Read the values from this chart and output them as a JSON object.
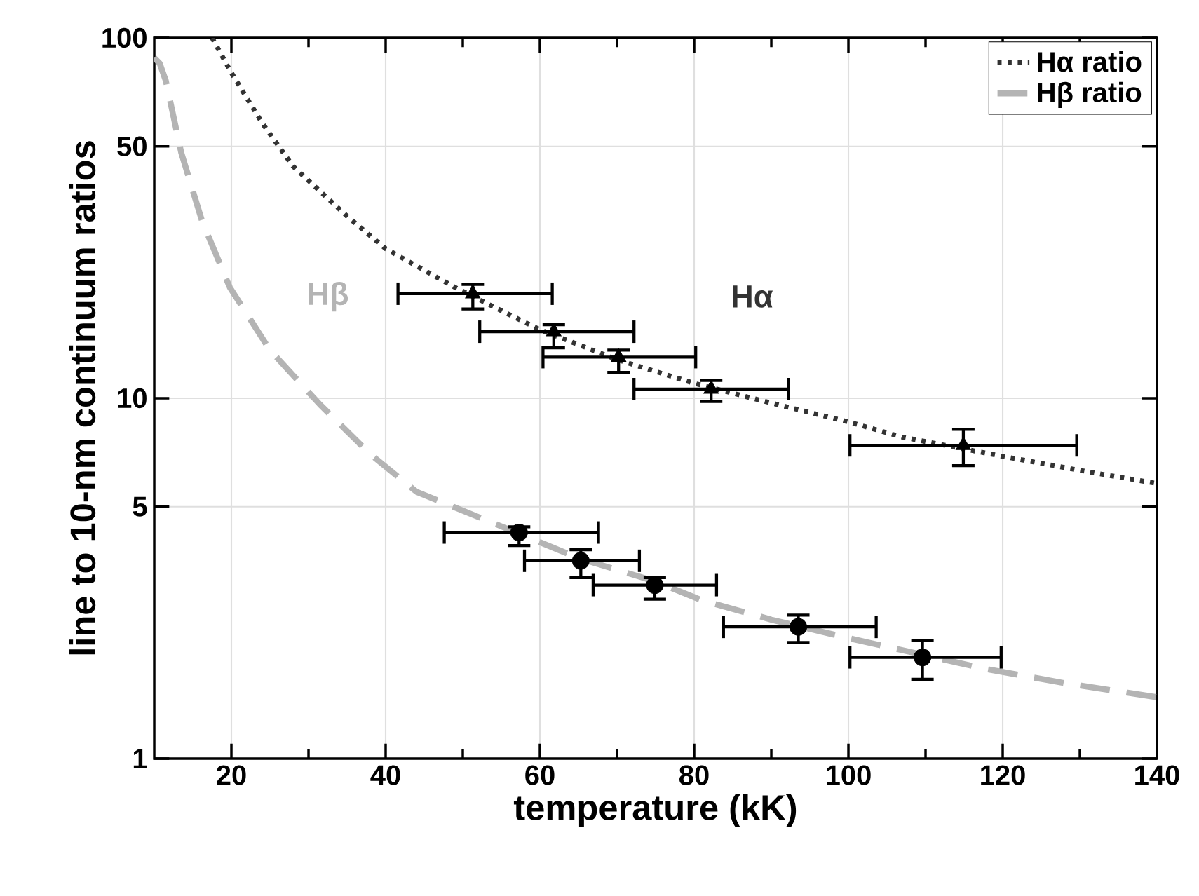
{
  "chart_data": {
    "type": "line",
    "xlabel": "temperature (kK)",
    "ylabel": "line to 10-nm continuum ratios",
    "xlim": [
      10,
      140
    ],
    "xticks": [
      20,
      40,
      60,
      80,
      100,
      120,
      140
    ],
    "ylim": [
      1,
      100
    ],
    "yticks": [
      1,
      5,
      10,
      50,
      100
    ],
    "log": "y",
    "grid": true,
    "legend": "top right",
    "annotations": [
      "Hα",
      "Hβ"
    ],
    "series": [
      {
        "name": "Hα ratio",
        "color": "#333333",
        "line_style": "dotted",
        "marker": "none",
        "x": [
          17.5,
          20,
          24,
          28,
          35,
          40,
          49,
          55,
          60,
          70,
          80,
          90,
          100,
          107,
          120,
          132,
          140
        ],
        "values": [
          100,
          80,
          58,
          44,
          32,
          26,
          20.3,
          17.5,
          15.5,
          12.8,
          11,
          9.7,
          8.6,
          7.8,
          6.9,
          6.2,
          5.8
        ]
      },
      {
        "name": "Hβ ratio",
        "color": "#b4b4b4",
        "line_style": "dashed",
        "marker": "none",
        "x": [
          10,
          10.7,
          11.5,
          13.5,
          16.2,
          19.8,
          25,
          31.5,
          38,
          44,
          54,
          65,
          75,
          81,
          90,
          100,
          118,
          128,
          140
        ],
        "values": [
          88,
          85,
          76,
          48,
          31,
          20.3,
          13.6,
          9.6,
          7,
          5.5,
          4.5,
          3.6,
          3.1,
          2.75,
          2.43,
          2.16,
          1.77,
          1.62,
          1.48
        ]
      },
      {
        "type": "scatter",
        "color": "#000000",
        "marker": "triangle",
        "x": [
          51.3,
          61.8,
          70.2,
          82.2,
          114.9
        ],
        "values": [
          19.5,
          15.3,
          13.0,
          10.6,
          7.4
        ],
        "xerrors": [
          [
            41.6,
            61.6
          ],
          [
            52.2,
            72.2
          ],
          [
            60.4,
            80.2
          ],
          [
            72.2,
            92.2
          ],
          [
            100.2,
            129.6
          ]
        ],
        "errors": [
          [
            17.7,
            20.7
          ],
          [
            13.8,
            16.0
          ],
          [
            11.8,
            13.6
          ],
          [
            9.8,
            11.2
          ],
          [
            6.5,
            8.2
          ]
        ]
      },
      {
        "type": "scatter",
        "color": "#000000",
        "marker": "circle",
        "x": [
          57.3,
          65.3,
          74.9,
          93.5,
          109.6
        ],
        "values": [
          4.24,
          3.54,
          3.03,
          2.32,
          1.91
        ],
        "xerrors": [
          [
            47.6,
            67.6
          ],
          [
            58,
            72.9
          ],
          [
            66.9,
            82.9
          ],
          [
            83.8,
            103.6
          ],
          [
            100.2,
            119.8
          ]
        ],
        "errors": [
          [
            3.9,
            4.4
          ],
          [
            3.18,
            3.8
          ],
          [
            2.77,
            3.18
          ],
          [
            2.1,
            2.5
          ],
          [
            1.66,
            2.13
          ]
        ]
      }
    ]
  }
}
